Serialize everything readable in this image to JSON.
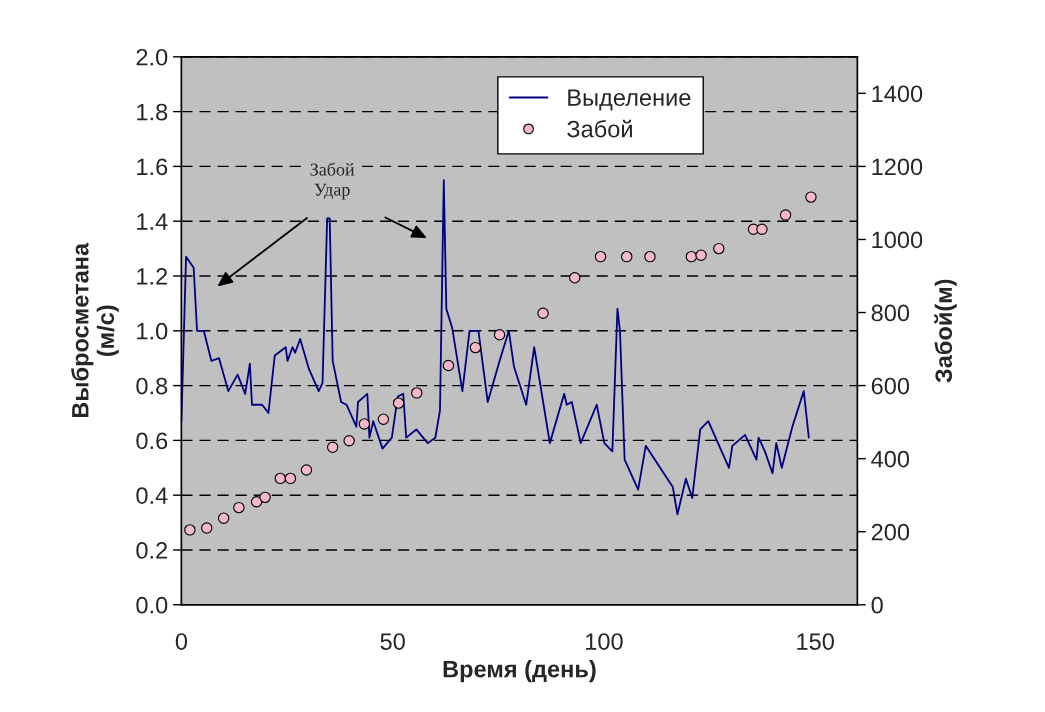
{
  "chart_data": {
    "type": "line",
    "xlabel": "Время (день)",
    "ylabel": "Выбросметана\n(м/с)",
    "y2label": "Забой(м)",
    "xlim": [
      0,
      160
    ],
    "xticks": [
      0,
      50,
      100,
      150
    ],
    "ylim": [
      0,
      2.0
    ],
    "yticks": [
      {
        "value": 0,
        "label": "0.0"
      },
      {
        "value": 0.2,
        "label": "0.2"
      },
      {
        "value": 0.4,
        "label": "0.4"
      },
      {
        "value": 0.6,
        "label": "0.6"
      },
      {
        "value": 0.8,
        "label": "0.8"
      },
      {
        "value": 1.0,
        "label": "1.0"
      },
      {
        "value": 1.2,
        "label": "1.2"
      },
      {
        "value": 1.4,
        "label": "1.4"
      },
      {
        "value": 1.6,
        "label": "1.6"
      },
      {
        "value": 1.8,
        "label": "1.8"
      },
      {
        "value": 2.0,
        "label": "2.0"
      }
    ],
    "y2lim": [
      0,
      1500
    ],
    "y2ticks": [
      0,
      200,
      400,
      600,
      800,
      1000,
      1200,
      1400
    ],
    "grid": "y",
    "legend": "top",
    "line_style": "solid",
    "annotations": [
      "Забой\nУдар"
    ],
    "series": [
      {
        "name": "Выделение",
        "color": "#000080",
        "marker": "none",
        "x": [
          0,
          1.1,
          2.9,
          3.7,
          5.3,
          7.1,
          8.9,
          11.1,
          13.3,
          15.1,
          16.2,
          16.7,
          19.1,
          20.6,
          22.1,
          24.7,
          25.1,
          26.3,
          26.9,
          28.1,
          30.2,
          32.5,
          33.4,
          34.5,
          35.1,
          35.8,
          37.8,
          39.1,
          41.4,
          41.8,
          44.0,
          44.5,
          45.4,
          47.6,
          49.8,
          51.2,
          52.5,
          53.2,
          55.6,
          58.3,
          60.1,
          61.2,
          62.1,
          62.7,
          64.1,
          66.5,
          68.2,
          70.3,
          72.5,
          75.3,
          77.5,
          78.7,
          81.6,
          83.5,
          87.2,
          90.6,
          91.2,
          92.4,
          94.5,
          98.3,
          100.1,
          102.0,
          103.2,
          103.8,
          104.9,
          108.1,
          109.9,
          116.3,
          117.4,
          119.4,
          120.9,
          122.8,
          124.7,
          129.6,
          130.4,
          133.4,
          136.1,
          136.6,
          138.1,
          139.9,
          140.8,
          142.1,
          144.6,
          147.3,
          148.5
        ],
        "values": [
          0.67,
          1.27,
          1.23,
          1.0,
          1.0,
          0.89,
          0.9,
          0.78,
          0.84,
          0.77,
          0.88,
          0.73,
          0.73,
          0.7,
          0.91,
          0.94,
          0.89,
          0.94,
          0.92,
          0.97,
          0.86,
          0.78,
          0.81,
          1.41,
          1.41,
          0.89,
          0.74,
          0.73,
          0.65,
          0.74,
          0.77,
          0.61,
          0.67,
          0.57,
          0.61,
          0.76,
          0.77,
          0.61,
          0.64,
          0.59,
          0.61,
          0.71,
          1.55,
          1.08,
          1.01,
          0.78,
          1.0,
          1.0,
          0.74,
          0.89,
          1.0,
          0.87,
          0.73,
          0.94,
          0.59,
          0.77,
          0.73,
          0.74,
          0.59,
          0.73,
          0.59,
          0.56,
          1.08,
          1.0,
          0.53,
          0.42,
          0.58,
          0.43,
          0.33,
          0.46,
          0.39,
          0.64,
          0.67,
          0.5,
          0.58,
          0.62,
          0.53,
          0.61,
          0.56,
          0.48,
          0.59,
          0.5,
          0.65,
          0.78,
          0.61
        ]
      },
      {
        "name": "Забой",
        "type": "scatter",
        "axis": "y2",
        "color": "#f4b8c8",
        "marker": "circle",
        "x": [
          2.0,
          6.0,
          10.0,
          13.6,
          17.8,
          19.8,
          23.4,
          25.8,
          29.6,
          35.8,
          39.7,
          43.3,
          47.8,
          51.4,
          55.7,
          63.2,
          69.6,
          75.3,
          85.6,
          93.1,
          99.2,
          105.4,
          110.9,
          120.7,
          123.0,
          127.2,
          135.4,
          137.4,
          143.0,
          149.0
        ],
        "values": [
          205,
          210,
          237,
          266,
          282,
          294,
          346,
          346,
          369,
          431,
          449,
          495,
          508,
          552,
          580,
          655,
          704,
          739,
          798,
          895,
          953,
          953,
          953,
          953,
          957,
          975,
          1028,
          1028,
          1067,
          1116
        ]
      }
    ]
  }
}
